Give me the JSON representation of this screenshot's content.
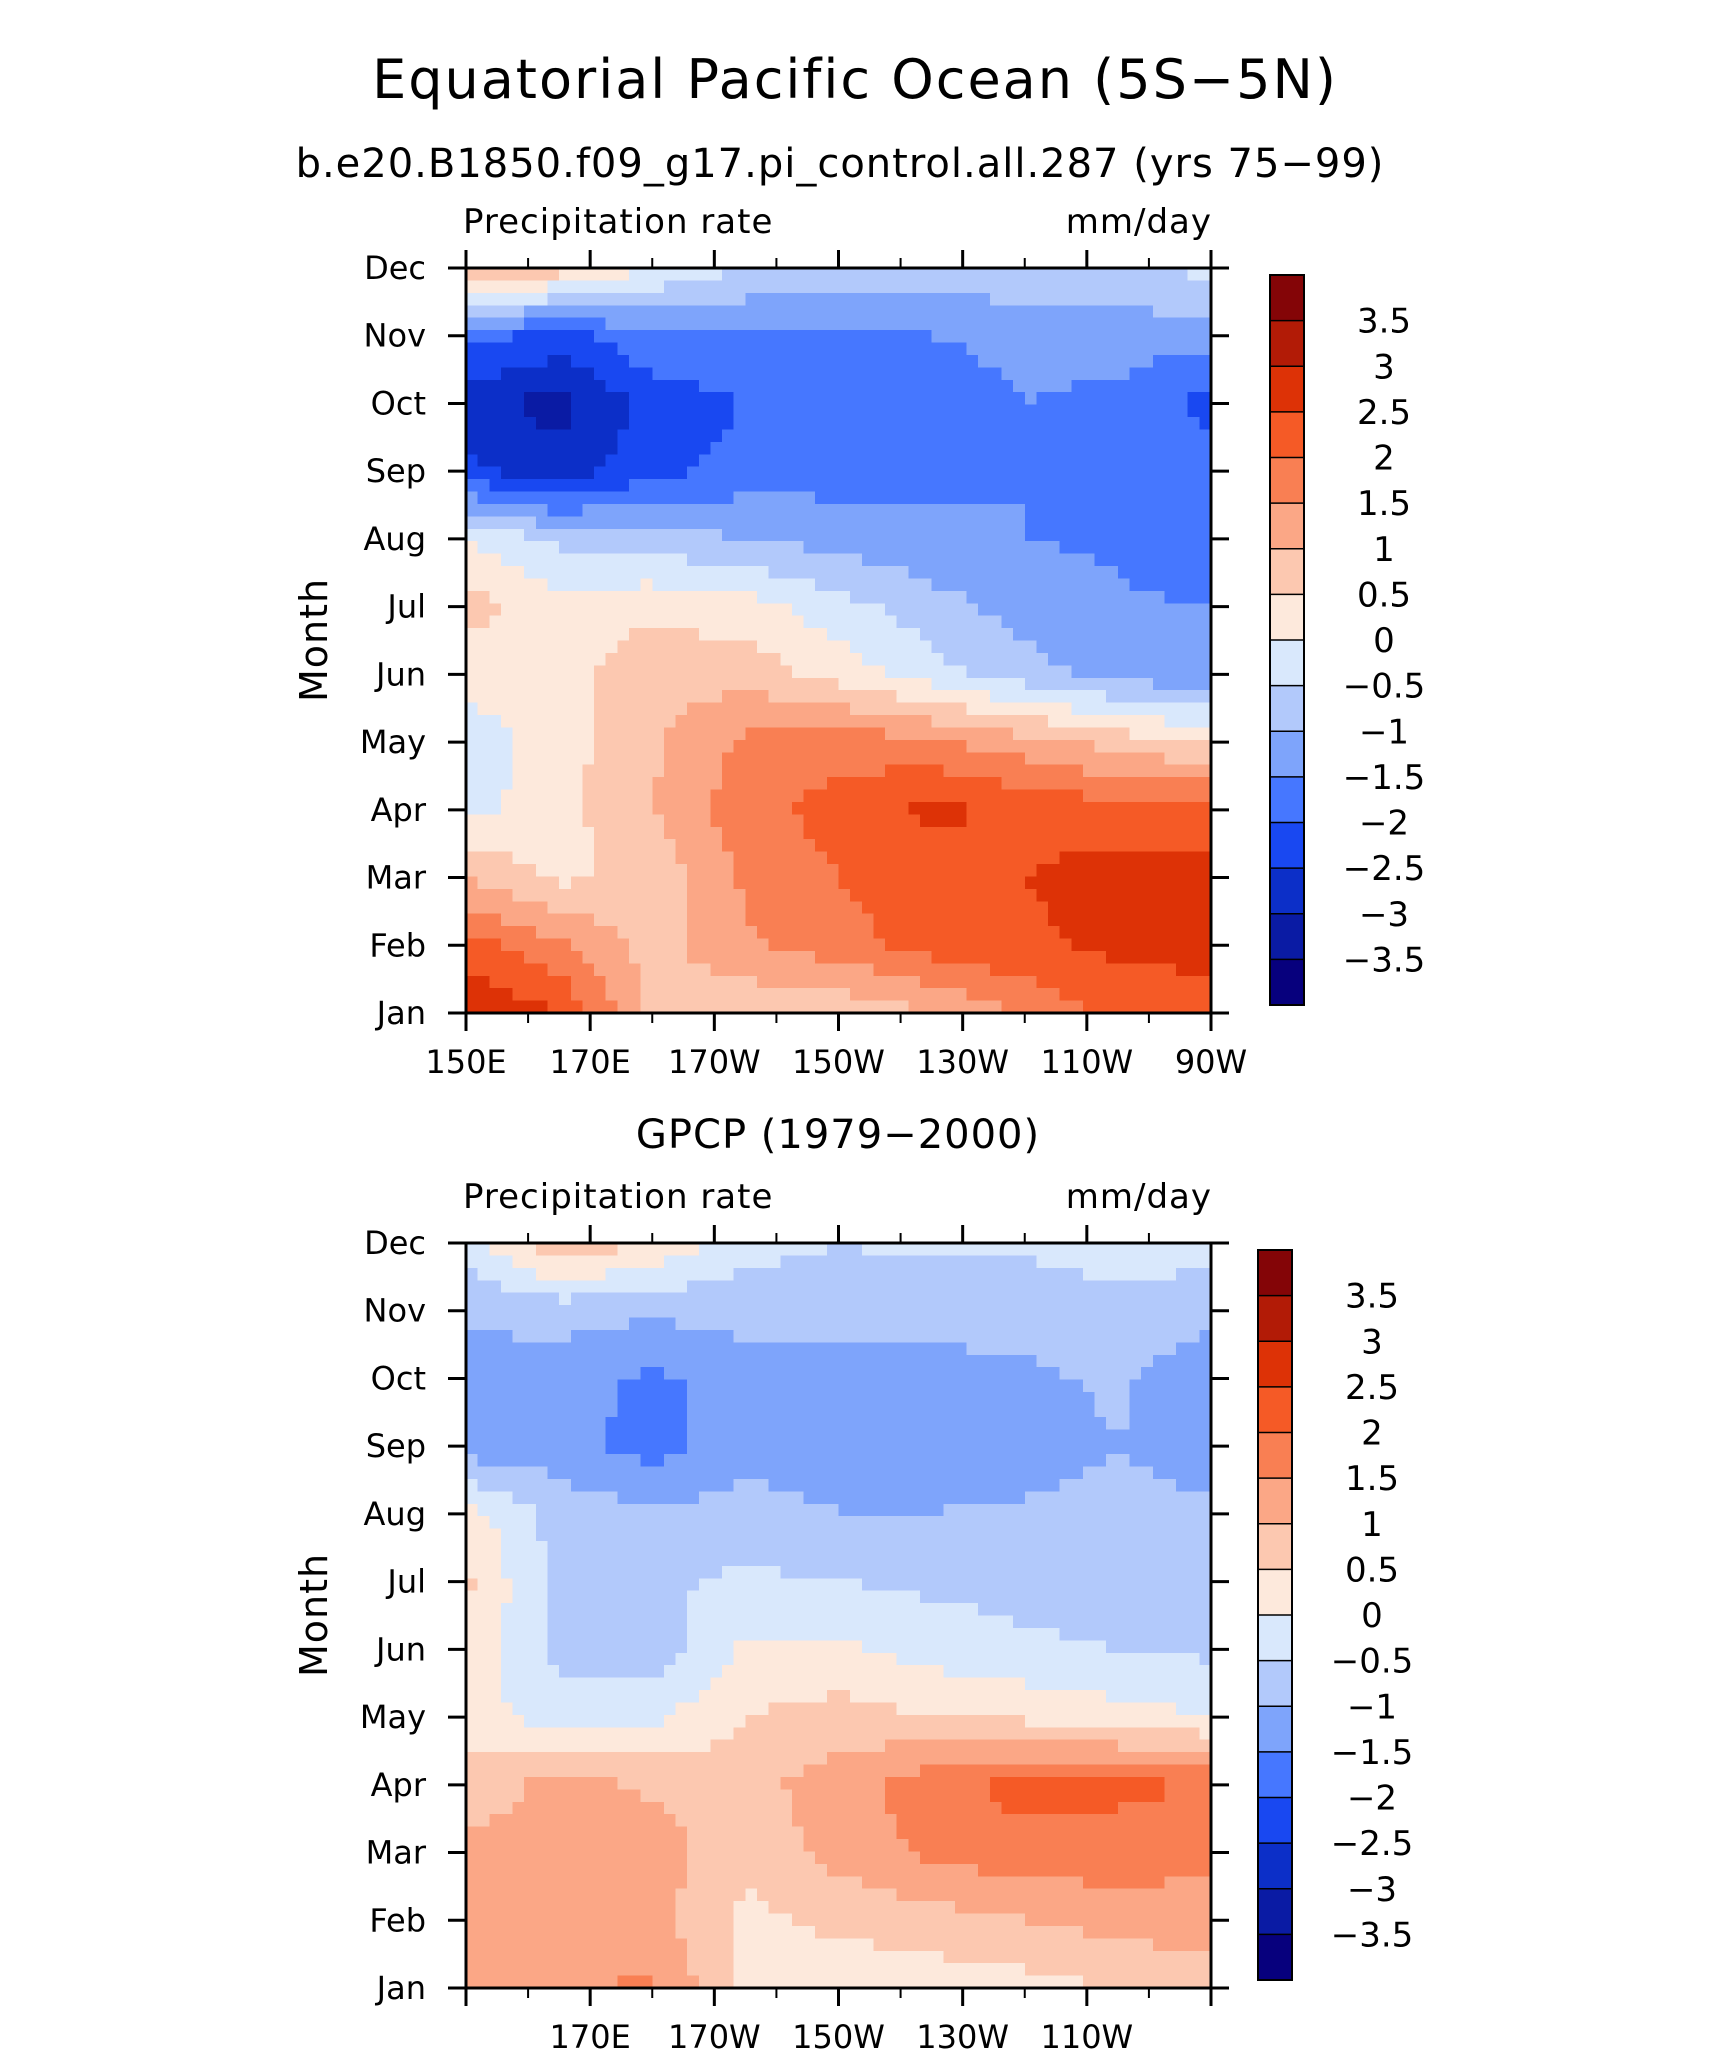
{
  "figure": {
    "title": "Equatorial Pacific Ocean (5S-5N)",
    "colors": {
      "levels": [
        "#07007d",
        "#0a1ba4",
        "#0c2fc8",
        "#1948f1",
        "#4677ff",
        "#7ea4fb",
        "#b2c9fb",
        "#d9e8fc",
        "#fde9dc",
        "#fcc8b0",
        "#fba786",
        "#f97f53",
        "#f55a26",
        "#dd3206",
        "#b21b06",
        "#840507"
      ]
    }
  },
  "chart_data": [
    {
      "type": "contour",
      "title": "b.e20.B1850.f09_g17.pi_control.all.287 (yrs 75-99)",
      "left_label": "Precipitation rate",
      "right_label": "mm/day",
      "ylabel": "Month",
      "y_ticks": [
        "Jan",
        "Feb",
        "Mar",
        "Apr",
        "May",
        "Jun",
        "Jul",
        "Aug",
        "Sep",
        "Oct",
        "Nov",
        "Dec"
      ],
      "x_ticks": [
        "150E",
        "170E",
        "170W",
        "150W",
        "130W",
        "110W",
        "90W"
      ],
      "x_tick_lons": [
        150,
        170,
        190,
        210,
        230,
        250,
        270
      ],
      "xlim_lon": [
        150,
        270
      ],
      "colorbar_labels": [
        "3.5",
        "3",
        "2.5",
        "2",
        "1.5",
        "1",
        "0.5",
        "0",
        "-0.5",
        "-1",
        "-1.5",
        "-2",
        "-2.5",
        "-3",
        "-3.5"
      ],
      "contour_levels": [
        -3.5,
        -3,
        -2.5,
        -2,
        -1.5,
        -1,
        -0.5,
        0,
        0.5,
        1,
        1.5,
        2,
        2.5,
        3,
        3.5
      ],
      "grid_lon": [
        150,
        165,
        180,
        195,
        210,
        225,
        240,
        255,
        270
      ],
      "grid_months": [
        "Jan",
        "Feb",
        "Mar",
        "Apr",
        "May",
        "Jun",
        "Jul",
        "Aug",
        "Sep",
        "Oct",
        "Nov",
        "Dec"
      ],
      "z": [
        [
          3.0,
          2.5,
          0.8,
          0.6,
          0.6,
          1.0,
          1.6,
          2.2,
          2.4
        ],
        [
          2.2,
          1.6,
          0.8,
          1.4,
          1.8,
          2.2,
          2.4,
          2.6,
          2.6
        ],
        [
          1.0,
          0.4,
          0.6,
          1.6,
          2.0,
          2.3,
          2.5,
          2.7,
          2.7
        ],
        [
          -0.2,
          0.3,
          1.0,
          1.8,
          2.2,
          2.6,
          2.4,
          2.2,
          2.2
        ],
        [
          -0.3,
          0.3,
          0.9,
          1.6,
          1.8,
          1.6,
          1.2,
          0.8,
          0.4
        ],
        [
          0.2,
          0.3,
          0.8,
          0.8,
          0.3,
          -0.3,
          -0.8,
          -1.2,
          -1.4
        ],
        [
          0.7,
          0.2,
          0.4,
          0.2,
          -0.3,
          -0.8,
          -1.2,
          -1.4,
          -1.5
        ],
        [
          0.0,
          -0.6,
          -0.8,
          -1.0,
          -1.2,
          -1.4,
          -1.5,
          -1.6,
          -2.0
        ],
        [
          -2.4,
          -2.8,
          -2.2,
          -1.8,
          -1.7,
          -1.6,
          -1.5,
          -1.6,
          -1.8
        ],
        [
          -2.8,
          -3.2,
          -2.3,
          -2.0,
          -1.8,
          -1.7,
          -1.5,
          -1.6,
          -2.2
        ],
        [
          -1.8,
          -2.2,
          -1.6,
          -1.6,
          -1.6,
          -1.5,
          -1.4,
          -1.3,
          -1.3
        ],
        [
          1.2,
          0.8,
          0.0,
          -0.5,
          -0.7,
          -0.7,
          -0.6,
          -0.5,
          -0.4
        ]
      ]
    },
    {
      "type": "contour",
      "title": "GPCP (1979-2000)",
      "left_label": "Precipitation rate",
      "right_label": "mm/day",
      "ylabel": "Month",
      "y_ticks": [
        "Jan",
        "Feb",
        "Mar",
        "Apr",
        "May",
        "Jun",
        "Jul",
        "Aug",
        "Sep",
        "Oct",
        "Nov",
        "Dec"
      ],
      "x_ticks": [
        "170E",
        "170W",
        "150W",
        "130W",
        "110W"
      ],
      "x_tick_lons": [
        170,
        190,
        210,
        230,
        250
      ],
      "xlim_lon": [
        150,
        270
      ],
      "colorbar_labels": [
        "3.5",
        "3",
        "2.5",
        "2",
        "1.5",
        "1",
        "0.5",
        "0",
        "-0.5",
        "-1",
        "-1.5",
        "-2",
        "-2.5",
        "-3",
        "-3.5"
      ],
      "contour_levels": [
        -3.5,
        -3,
        -2.5,
        -2,
        -1.5,
        -1,
        -0.5,
        0,
        0.5,
        1,
        1.5,
        2,
        2.5,
        3,
        3.5
      ],
      "grid_lon": [
        150,
        165,
        180,
        195,
        210,
        225,
        240,
        255,
        270
      ],
      "grid_months": [
        "Jan",
        "Feb",
        "Mar",
        "Apr",
        "May",
        "Jun",
        "Jul",
        "Aug",
        "Sep",
        "Oct",
        "Nov",
        "Dec"
      ],
      "z": [
        [
          1.2,
          1.4,
          1.6,
          0.3,
          0.2,
          0.2,
          0.3,
          0.5,
          0.7
        ],
        [
          1.3,
          1.0,
          1.2,
          0.4,
          0.6,
          0.8,
          1.0,
          1.2,
          1.3
        ],
        [
          1.2,
          1.0,
          1.3,
          0.6,
          1.2,
          1.6,
          1.8,
          1.8,
          1.6
        ],
        [
          0.7,
          1.2,
          0.9,
          0.8,
          1.3,
          1.8,
          2.2,
          2.1,
          2.0
        ],
        [
          0.3,
          -0.3,
          -0.1,
          0.5,
          0.7,
          0.5,
          0.4,
          0.2,
          0.0
        ],
        [
          0.3,
          -0.6,
          -0.8,
          0.1,
          0.1,
          -0.2,
          -0.4,
          -0.5,
          -0.6
        ],
        [
          0.6,
          -0.7,
          -0.6,
          -0.4,
          -0.5,
          -0.6,
          -0.7,
          -0.8,
          -0.9
        ],
        [
          0.2,
          -0.7,
          -0.9,
          -0.8,
          -1.0,
          -1.0,
          -0.9,
          -0.8,
          -0.9
        ],
        [
          -1.3,
          -1.3,
          -1.7,
          -1.2,
          -1.2,
          -1.3,
          -1.3,
          -1.0,
          -1.3
        ],
        [
          -1.2,
          -1.3,
          -1.6,
          -1.3,
          -1.3,
          -1.2,
          -1.1,
          -0.9,
          -1.4
        ],
        [
          -0.9,
          -0.8,
          -0.9,
          -0.8,
          -0.8,
          -0.8,
          -0.8,
          -0.6,
          -0.8
        ],
        [
          -0.3,
          1.0,
          0.4,
          -0.3,
          -0.5,
          -0.4,
          -0.4,
          -0.3,
          -0.3
        ]
      ]
    }
  ]
}
